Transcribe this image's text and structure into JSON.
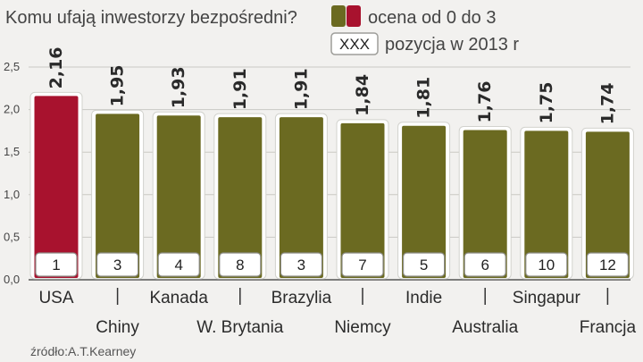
{
  "chart_data": {
    "type": "bar",
    "title": "Komu ufają inwestorzy bezpośredni?",
    "categories": [
      "USA",
      "Chiny",
      "Kanada",
      "W. Brytania",
      "Brazylia",
      "Niemcy",
      "Indie",
      "Australia",
      "Singapur",
      "Francja"
    ],
    "values": [
      2.16,
      1.95,
      1.93,
      1.91,
      1.91,
      1.84,
      1.81,
      1.76,
      1.75,
      1.74
    ],
    "value_labels": [
      "2,16",
      "1,95",
      "1,93",
      "1,91",
      "1,91",
      "1,84",
      "1,81",
      "1,76",
      "1,75",
      "1,74"
    ],
    "ranks": [
      "1",
      "3",
      "4",
      "8",
      "3",
      "7",
      "5",
      "6",
      "10",
      "12"
    ],
    "y_ticks": [
      "0,0",
      "0,5",
      "1,0",
      "1,5",
      "2,0",
      "2,5"
    ],
    "ylim": [
      0,
      2.5
    ],
    "xlabel": "",
    "ylabel": "",
    "grid": true,
    "legend": [
      {
        "label": "ocena od 0  do 3",
        "swatch": "score"
      },
      {
        "label": "pozycja w 2013 r",
        "swatch": "rank",
        "sample": "XXX"
      }
    ],
    "legend_position": "top-right",
    "source": "źródło:A.T.Kearney",
    "colors": {
      "highlight": "#a8122e",
      "bar": "#6b6a21",
      "background": "#f2f1ef",
      "grid": "#c9c9c4"
    }
  }
}
